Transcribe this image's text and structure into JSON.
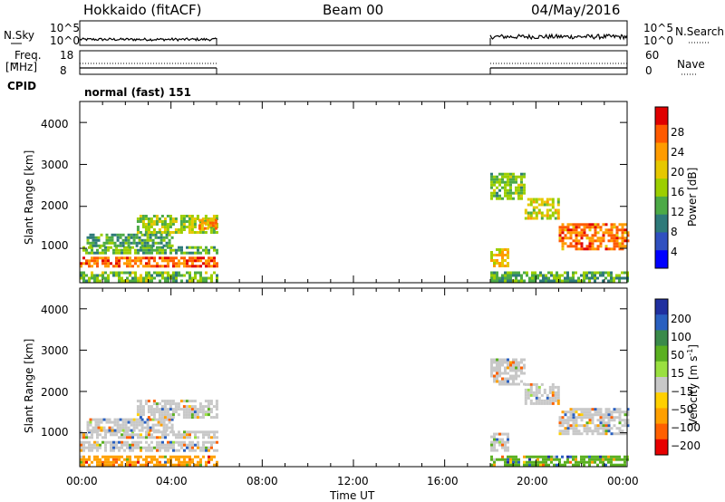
{
  "header": {
    "left": "Hokkaido (fitACF)",
    "center": "Beam 00",
    "right": "04/May/2016"
  },
  "top_panels": {
    "nsky_label": "N.Sky",
    "nsearch_label": "N.Search",
    "nsky_ticks": [
      "10^5",
      "10^0"
    ],
    "nsearch_ticks": [
      "10^5",
      "10^0"
    ],
    "freq_label_1": "Freq.",
    "freq_label_2": "[MHz]",
    "freq_ticks": [
      "18",
      "8"
    ],
    "nave_ticks": [
      "60",
      "0"
    ],
    "nave_label": "Nave",
    "cpid_label": "CPID",
    "cpid_text": "normal (fast) 151"
  },
  "axes": {
    "ylabel": "Slant Range [km]",
    "xlabel": "Time UT",
    "y_ticks": [
      "4000",
      "3000",
      "2000",
      "1000"
    ],
    "x_ticks": [
      "00:00",
      "04:00",
      "08:00",
      "12:00",
      "16:00",
      "20:00",
      "00:00"
    ]
  },
  "power_scale": {
    "label": "Power [dB]",
    "ticks": [
      "28",
      "24",
      "20",
      "16",
      "12",
      "8",
      "4"
    ],
    "colors": [
      "#e00000",
      "#ff5a00",
      "#ff9c00",
      "#e6c800",
      "#9ccf00",
      "#4caa46",
      "#2e7a7a",
      "#3050c0",
      "#0000ff"
    ]
  },
  "velocity_scale": {
    "label": "Velocity [m s",
    "label_sup": "-1",
    "label_end": "]",
    "ticks": [
      "200",
      "100",
      "50",
      "15",
      "−15",
      "−50",
      "−100",
      "−200"
    ],
    "colors": [
      "#2030a0",
      "#2a60c0",
      "#3a8a4a",
      "#5ab020",
      "#9ae040",
      "#c8c8c8",
      "#ffd000",
      "#ffa000",
      "#ff6000",
      "#e80000"
    ]
  },
  "chart_data": {
    "type": "heatmap",
    "title": "Hokkaido (fitACF)  Beam 00  04/May/2016",
    "xlabel": "Time UT",
    "ylabel": "Slant Range [km]",
    "x_range_hours": [
      0,
      24
    ],
    "y_range_km": [
      180,
      4500
    ],
    "data_intervals_hours": [
      [
        0,
        6
      ],
      [
        18,
        24
      ]
    ],
    "power_panel": {
      "colorbar": "Power [dB]",
      "cbar_range_db": [
        0,
        32
      ],
      "regions": [
        {
          "t0": 0.0,
          "t1": 6.0,
          "r0": 550,
          "r1": 800,
          "db": 27
        },
        {
          "t0": 0.0,
          "t1": 6.0,
          "r0": 900,
          "r1": 1050,
          "db": 13
        },
        {
          "t0": 0.3,
          "t1": 4.0,
          "r0": 1050,
          "r1": 1350,
          "db": 11
        },
        {
          "t0": 2.5,
          "t1": 6.0,
          "r0": 1400,
          "r1": 1800,
          "db": 16
        },
        {
          "t0": 5.2,
          "t1": 6.0,
          "r0": 1450,
          "r1": 1700,
          "db": 24
        },
        {
          "t0": 0.0,
          "t1": 6.0,
          "r0": 200,
          "r1": 450,
          "db": 14
        },
        {
          "t0": 18.0,
          "t1": 19.5,
          "r0": 2200,
          "r1": 2800,
          "db": 14
        },
        {
          "t0": 19.5,
          "t1": 21.0,
          "r0": 1700,
          "r1": 2200,
          "db": 18
        },
        {
          "t0": 21.0,
          "t1": 24.0,
          "r0": 1000,
          "r1": 1600,
          "db": 26
        },
        {
          "t0": 18.0,
          "t1": 18.8,
          "r0": 550,
          "r1": 1000,
          "db": 20
        },
        {
          "t0": 18.0,
          "t1": 24.0,
          "r0": 200,
          "r1": 450,
          "db": 12
        }
      ]
    },
    "velocity_panel": {
      "colorbar": "Velocity [m s-1]",
      "cbar_range": [
        -250,
        250
      ],
      "regions": [
        {
          "t0": 0.0,
          "t1": 6.0,
          "r0": 550,
          "r1": 800,
          "v": 0
        },
        {
          "t0": 0.0,
          "t1": 6.0,
          "r0": 900,
          "r1": 1050,
          "v": 0
        },
        {
          "t0": 0.3,
          "t1": 4.0,
          "r0": 1050,
          "r1": 1350,
          "v": 0
        },
        {
          "t0": 2.5,
          "t1": 6.0,
          "r0": 1400,
          "r1": 1800,
          "v": 0
        },
        {
          "t0": 0.0,
          "t1": 6.0,
          "r0": 200,
          "r1": 450,
          "v": -40
        },
        {
          "t0": 18.0,
          "t1": 19.5,
          "r0": 2200,
          "r1": 2800,
          "v": 0
        },
        {
          "t0": 19.5,
          "t1": 21.0,
          "r0": 1700,
          "r1": 2200,
          "v": 0
        },
        {
          "t0": 21.0,
          "t1": 24.0,
          "r0": 1000,
          "r1": 1600,
          "v": 0
        },
        {
          "t0": 18.0,
          "t1": 18.8,
          "r0": 550,
          "r1": 1000,
          "v": 0
        },
        {
          "t0": 18.0,
          "t1": 24.0,
          "r0": 200,
          "r1": 450,
          "v": 40
        }
      ]
    }
  }
}
